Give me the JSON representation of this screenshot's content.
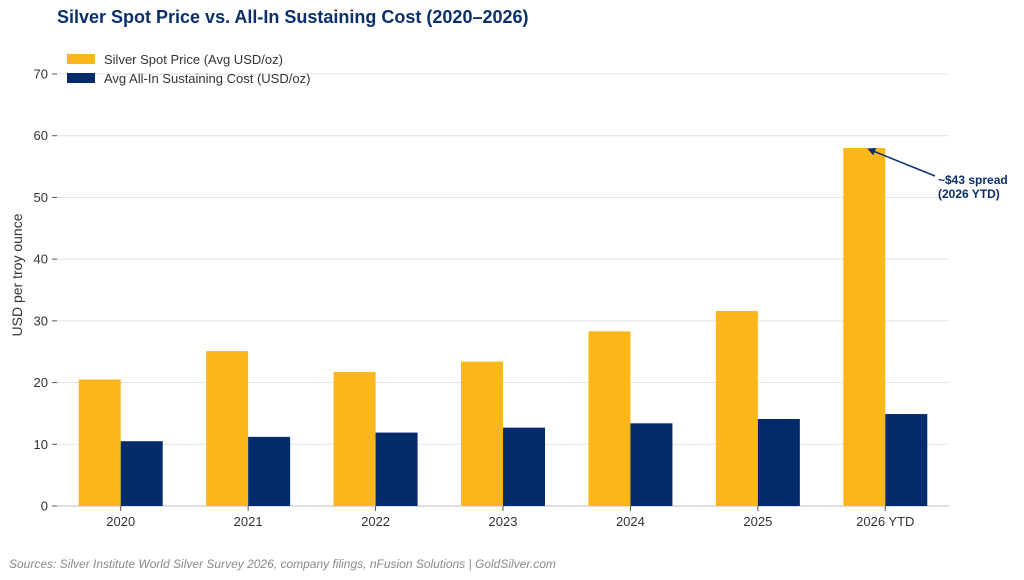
{
  "title": "Silver Spot Price vs. All-In Sustaining Cost (2020–2026)",
  "source": "Sources: Silver Institute World Silver Survey 2026, company filings, nFusion Solutions | GoldSilver.com",
  "chart_data": {
    "type": "bar",
    "title": "Silver Spot Price vs. All-In Sustaining Cost (2020–2026)",
    "xlabel": "",
    "ylabel": "USD per troy ounce",
    "categories": [
      "2020",
      "2021",
      "2022",
      "2023",
      "2024",
      "2025",
      "2026 YTD"
    ],
    "series": [
      {
        "name": "Silver Spot Price (Avg USD/oz)",
        "color": "#fbb719",
        "values": [
          20.5,
          25.1,
          21.7,
          23.4,
          28.3,
          31.6,
          58.0
        ]
      },
      {
        "name": "Avg All-In Sustaining Cost (USD/oz)",
        "color": "#052c6a",
        "values": [
          10.5,
          11.2,
          11.9,
          12.7,
          13.4,
          14.1,
          14.9
        ]
      }
    ],
    "ylim": [
      0,
      70
    ],
    "yticks": [
      0,
      10,
      20,
      30,
      40,
      50,
      60,
      70
    ],
    "grid": true,
    "legend_position": "top-left",
    "annotation": {
      "lines": [
        "~$43 spread",
        "(2026 YTD)"
      ],
      "category": "2026 YTD",
      "value": 58.0
    }
  }
}
